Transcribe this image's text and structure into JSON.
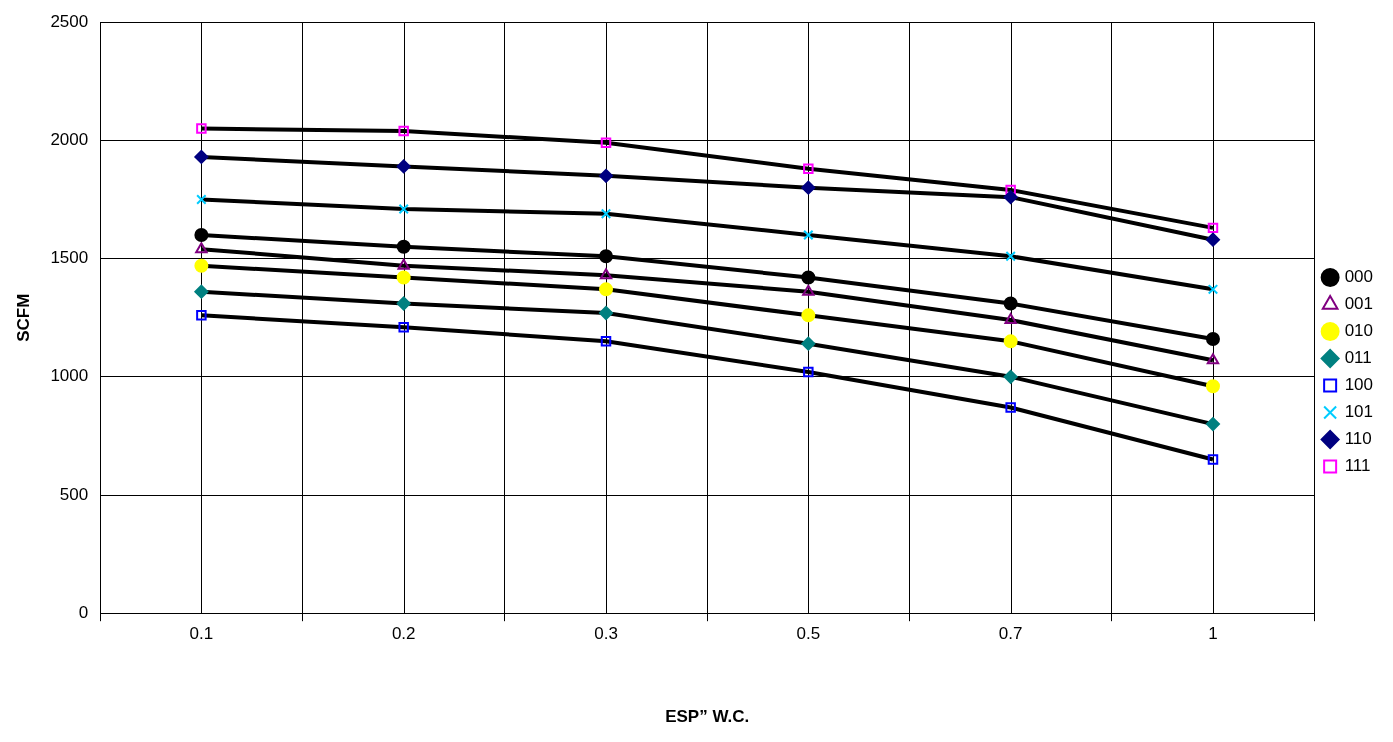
{
  "chart_data": {
    "type": "line",
    "xlabel": "ESP” W.C.",
    "ylabel": "SCFM",
    "categories": [
      "0.1",
      "0.2",
      "0.3",
      "0.5",
      "0.7",
      "1"
    ],
    "ylim": [
      0,
      2500
    ],
    "yticks": [
      0,
      500,
      1000,
      1500,
      2000,
      2500
    ],
    "grid": true,
    "legend": "right",
    "series": [
      {
        "name": "000",
        "color": "#000000",
        "marker": "circle",
        "values": [
          1600,
          1550,
          1510,
          1420,
          1310,
          1160
        ]
      },
      {
        "name": "001",
        "color": "#800080",
        "marker": "triangle",
        "values": [
          1540,
          1470,
          1430,
          1360,
          1240,
          1070
        ]
      },
      {
        "name": "010",
        "color": "#ffff00",
        "marker": "circle",
        "values": [
          1470,
          1420,
          1370,
          1260,
          1150,
          960
        ]
      },
      {
        "name": "011",
        "color": "#008080",
        "marker": "diamond",
        "values": [
          1360,
          1310,
          1270,
          1140,
          1000,
          800
        ]
      },
      {
        "name": "100",
        "color": "#0000ff",
        "marker": "square",
        "values": [
          1260,
          1210,
          1150,
          1020,
          870,
          650
        ]
      },
      {
        "name": "101",
        "color": "#00ccff",
        "marker": "cross",
        "values": [
          1750,
          1710,
          1690,
          1600,
          1510,
          1370
        ]
      },
      {
        "name": "110",
        "color": "#000080",
        "marker": "diamond",
        "values": [
          1930,
          1890,
          1850,
          1800,
          1760,
          1580
        ]
      },
      {
        "name": "111",
        "color": "#ff00ff",
        "marker": "square",
        "values": [
          2050,
          2040,
          1990,
          1880,
          1790,
          1630
        ]
      }
    ]
  }
}
